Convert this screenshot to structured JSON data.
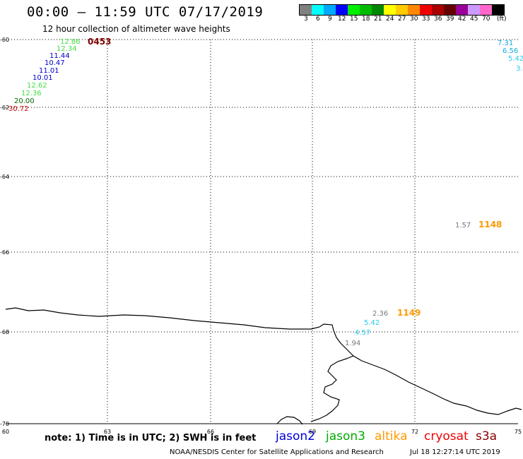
{
  "header": {
    "title": "00:00 – 11:59 UTC 07/17/2019",
    "subtitle": "12 hour collection of altimeter wave heights"
  },
  "legend": {
    "swatches": [
      {
        "color": "#808080",
        "label": "3"
      },
      {
        "color": "#00ffff",
        "label": "6"
      },
      {
        "color": "#00aaff",
        "label": "9"
      },
      {
        "color": "#0000ff",
        "label": "12"
      },
      {
        "color": "#00ee00",
        "label": "15"
      },
      {
        "color": "#00bb00",
        "label": "18"
      },
      {
        "color": "#008800",
        "label": "21"
      },
      {
        "color": "#ffff00",
        "label": "24"
      },
      {
        "color": "#ffcc00",
        "label": "27"
      },
      {
        "color": "#ff8800",
        "label": "30"
      },
      {
        "color": "#ee0000",
        "label": "33"
      },
      {
        "color": "#aa0000",
        "label": "36"
      },
      {
        "color": "#660000",
        "label": "39"
      },
      {
        "color": "#990099",
        "label": "42"
      },
      {
        "color": "#cc99ff",
        "label": "45"
      },
      {
        "color": "#ff66cc",
        "label": "70"
      },
      {
        "color": "#000000",
        "label": ""
      }
    ],
    "unit": "(ft)"
  },
  "map": {
    "lon_range": [
      60,
      75
    ],
    "lat_range": [
      -70,
      -60
    ],
    "lon_ticks": [
      60,
      63,
      66,
      69,
      72,
      75
    ],
    "lat_ticks": [
      -60,
      -62,
      -64,
      -66,
      -68,
      -70
    ],
    "pass_labels": [
      {
        "text": "0453",
        "color": "#800000"
      },
      {
        "text": "1148",
        "color": "#ff9900"
      },
      {
        "text": "1149",
        "color": "#ff9900"
      }
    ],
    "tracks": [
      {
        "name": "nw-track",
        "points": [
          {
            "text": "12.86",
            "color": "#44dd44"
          },
          {
            "text": "12.34",
            "color": "#44dd44"
          },
          {
            "text": "11.44",
            "color": "#0000cc"
          },
          {
            "text": "10.47",
            "color": "#0000cc"
          },
          {
            "text": "11.01",
            "color": "#0000cc"
          },
          {
            "text": "10.01",
            "color": "#0000cc"
          },
          {
            "text": "12.62",
            "color": "#44dd44"
          },
          {
            "text": "12.36",
            "color": "#44dd44"
          },
          {
            "text": "20.00",
            "color": "#006600"
          },
          {
            "text": "30.72",
            "color": "#cc0000"
          }
        ]
      },
      {
        "name": "ne-track",
        "points": [
          {
            "text": "7.31",
            "color": "#11aadd"
          },
          {
            "text": "6.56",
            "color": "#11aadd"
          },
          {
            "text": "5.42",
            "color": "#22ccee"
          },
          {
            "text": "3.",
            "color": "#22ccee"
          }
        ]
      },
      {
        "name": "east-track",
        "points": [
          {
            "text": "1.57",
            "color": "#777777"
          }
        ]
      },
      {
        "name": "south-track",
        "points": [
          {
            "text": "2.36",
            "color": "#777777"
          },
          {
            "text": "5.42",
            "color": "#22ccee"
          },
          {
            "text": "4.57",
            "color": "#22ccee"
          },
          {
            "text": "1.94",
            "color": "#777777"
          }
        ]
      }
    ]
  },
  "footer": {
    "note": "note: 1) Time is in UTC; 2) SWH is in feet",
    "satellites": [
      {
        "name": "jason2",
        "color": "#0000dd"
      },
      {
        "name": "jason3",
        "color": "#00aa00"
      },
      {
        "name": "altika",
        "color": "#ff9900"
      },
      {
        "name": "cryosat",
        "color": "#ee0000"
      },
      {
        "name": "s3a",
        "color": "#880000"
      }
    ],
    "credit": "NOAA/NESDIS Center for Satellite Applications and Research",
    "timestamp": "Jul 18 12:27:14 UTC 2019"
  }
}
